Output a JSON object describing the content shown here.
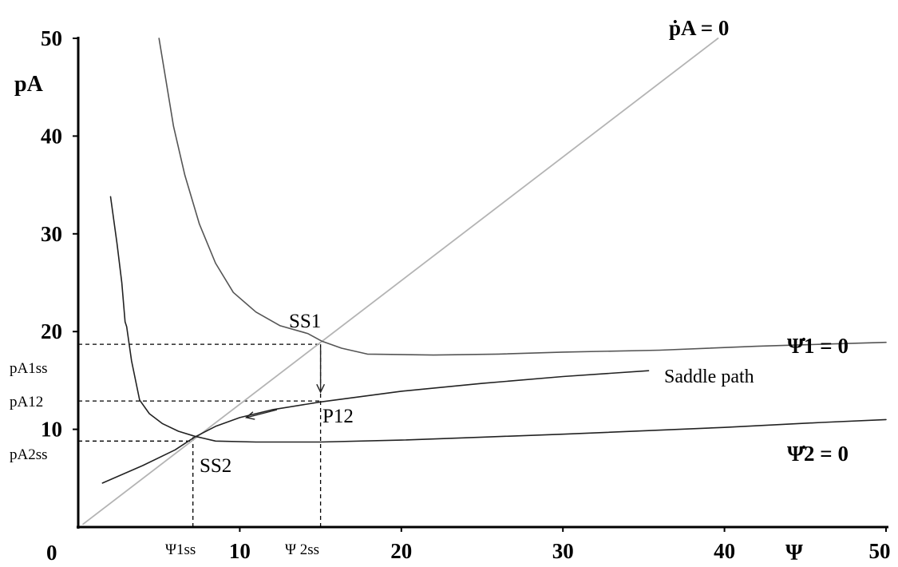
{
  "chart_data": {
    "type": "line",
    "xlabel": "Ψ",
    "ylabel": "pA",
    "xlim": [
      0,
      50
    ],
    "ylim": [
      0,
      50
    ],
    "origin_label": "0",
    "x_ticks": [
      10,
      20,
      30,
      40,
      50
    ],
    "y_ticks": [
      10,
      20,
      30,
      40,
      50
    ],
    "grid": false,
    "series": [
      {
        "name": "ṗA = 0",
        "color": "#b4b4b4",
        "points": [
          [
            0.3,
            0.3
          ],
          [
            39.6,
            50
          ]
        ]
      },
      {
        "name": "Ψ̇1 = 0",
        "color": "#555555",
        "points": [
          [
            5.0,
            50
          ],
          [
            5.4,
            46
          ],
          [
            5.9,
            41
          ],
          [
            6.6,
            36
          ],
          [
            7.5,
            31
          ],
          [
            8.5,
            27
          ],
          [
            9.6,
            24
          ],
          [
            11.0,
            22
          ],
          [
            12.5,
            20.6
          ],
          [
            14.2,
            19.8
          ],
          [
            15.1,
            19.0
          ],
          [
            16.3,
            18.3
          ],
          [
            17.9,
            17.7
          ],
          [
            22.0,
            17.6
          ],
          [
            26.0,
            17.7
          ],
          [
            30.0,
            17.9
          ],
          [
            36.0,
            18.1
          ],
          [
            42.0,
            18.5
          ],
          [
            46.0,
            18.7
          ],
          [
            50.0,
            18.9
          ]
        ]
      },
      {
        "name": "Ψ̇2 = 0",
        "color": "#222222",
        "points": [
          [
            2.0,
            33.8
          ],
          [
            2.4,
            29
          ],
          [
            2.7,
            25
          ],
          [
            2.9,
            21
          ],
          [
            3.0,
            20.5
          ],
          [
            3.3,
            17
          ],
          [
            3.8,
            13
          ],
          [
            4.4,
            11.6
          ],
          [
            5.2,
            10.6
          ],
          [
            6.2,
            9.8
          ],
          [
            7.2,
            9.3
          ],
          [
            8.5,
            8.8
          ],
          [
            11.0,
            8.7
          ],
          [
            15.0,
            8.7
          ],
          [
            20.0,
            8.9
          ],
          [
            25.0,
            9.2
          ],
          [
            30.0,
            9.5
          ],
          [
            40.0,
            10.2
          ],
          [
            46.0,
            10.7
          ],
          [
            50.0,
            11.0
          ]
        ]
      },
      {
        "name": "Saddle path",
        "color": "#222222",
        "points": [
          [
            1.5,
            4.5
          ],
          [
            4.0,
            6.3
          ],
          [
            6.0,
            7.9
          ],
          [
            7.2,
            9.2
          ],
          [
            8.5,
            10.3
          ],
          [
            10.0,
            11.2
          ],
          [
            12.0,
            12.0
          ],
          [
            15.0,
            12.8
          ],
          [
            20.0,
            13.9
          ],
          [
            25.0,
            14.7
          ],
          [
            30.0,
            15.4
          ],
          [
            35.3,
            16.0
          ]
        ]
      }
    ],
    "reference_lines": [
      {
        "label": "pA1ss",
        "y": 18.7,
        "x_end": 15.0
      },
      {
        "label": "pA12",
        "y": 12.9,
        "x_end": 15.0
      },
      {
        "label": "pA2ss",
        "y": 8.8,
        "x_end": 7.1
      },
      {
        "label": "Ψ1ss",
        "x": 7.1,
        "y_end": 9.2
      },
      {
        "label": "Ψ 2ss",
        "x": 15.0,
        "y_end": 18.7
      }
    ],
    "points": [
      {
        "label": "SS1",
        "x": 15.0,
        "y": 18.7
      },
      {
        "label": "SS2",
        "x": 7.1,
        "y": 9.2
      },
      {
        "label": "P12",
        "x": 15.0,
        "y": 12.9
      }
    ],
    "arrows": [
      {
        "from": [
          15.0,
          18.4
        ],
        "to": [
          15.0,
          13.8
        ]
      },
      {
        "from": [
          12.3,
          12.0
        ],
        "to": [
          10.4,
          11.2
        ]
      }
    ]
  }
}
